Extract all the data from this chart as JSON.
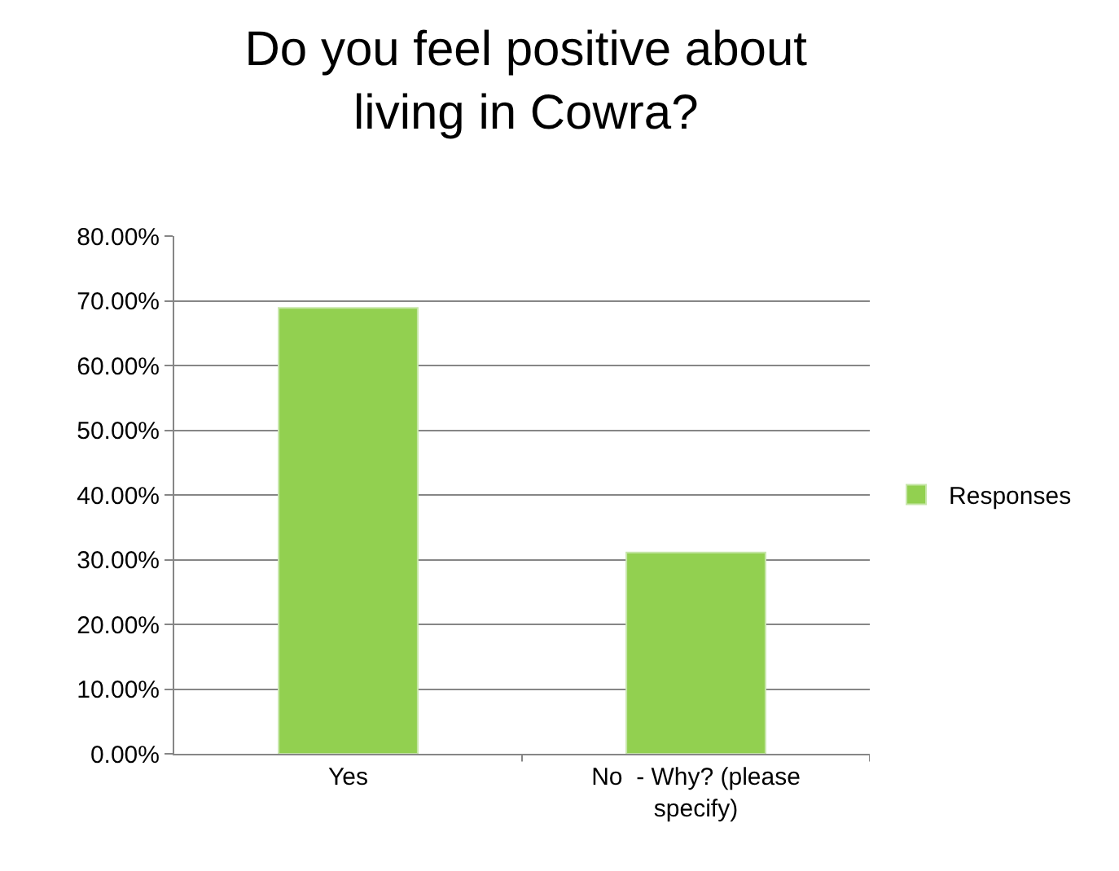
{
  "chart_data": {
    "type": "bar",
    "title": "Do you feel positive about living in Cowra?",
    "categories": [
      "Yes",
      "No  - Why? (please specify)"
    ],
    "series": [
      {
        "name": "Responses",
        "color": "#92d050",
        "values": [
          68.9,
          31.1
        ]
      }
    ],
    "ylim": [
      0,
      80
    ],
    "yticks": [
      {
        "value": 0,
        "label": "0.00%"
      },
      {
        "value": 10,
        "label": "10.00%"
      },
      {
        "value": 20,
        "label": "20.00%"
      },
      {
        "value": 30,
        "label": "30.00%"
      },
      {
        "value": 40,
        "label": "40.00%"
      },
      {
        "value": 50,
        "label": "50.00%"
      },
      {
        "value": 60,
        "label": "60.00%"
      },
      {
        "value": 70,
        "label": "70.00%"
      },
      {
        "value": 80,
        "label": "80.00%"
      }
    ],
    "grid": "y",
    "legend": "right"
  }
}
